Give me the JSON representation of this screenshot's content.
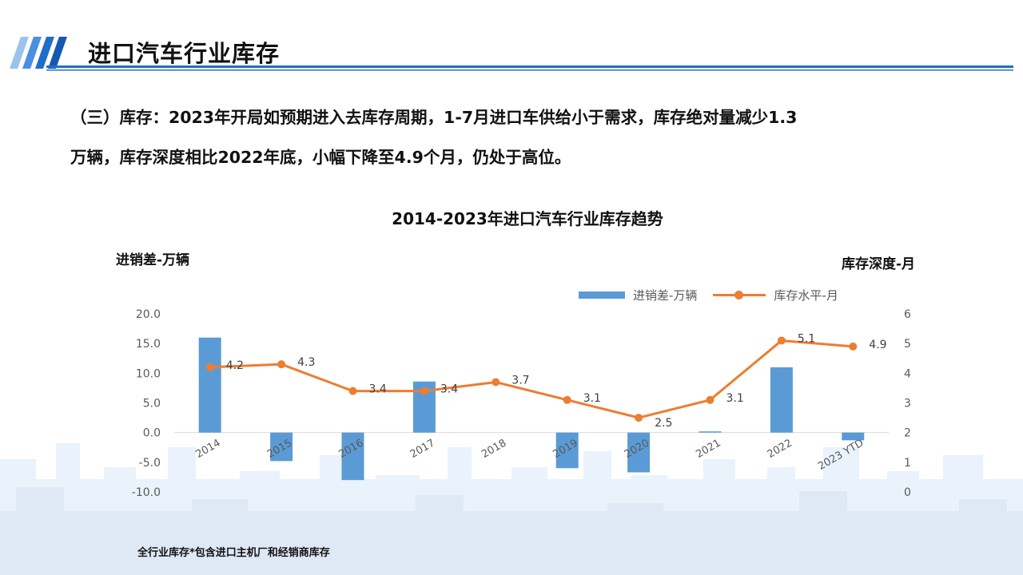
{
  "header": {
    "title": "进口汽车行业库存"
  },
  "body": {
    "line1": "（三）库存：2023年开局如预期进入去库存周期，1-7月进口车供给小于需求，库存绝对量减少1.3",
    "line2": "万辆，库存深度相比2022年底，小幅下降至4.9个月，仍处于高位。"
  },
  "colors": {
    "bar": "#5b9bd5",
    "line": "#ed7d31",
    "accent": "#1f6fc9",
    "skyline": "#e6effa"
  },
  "chart_data": {
    "type": "bar",
    "title": "2014-2023年进口汽车行业库存趋势",
    "categories": [
      "2014",
      "2015",
      "2016",
      "2017",
      "2018",
      "2019",
      "2020",
      "2021",
      "2022",
      "2023 YTD"
    ],
    "series": [
      {
        "name": "进销差-万辆",
        "type": "bar",
        "axis": "left",
        "values": [
          16.0,
          -4.8,
          -8.0,
          8.6,
          0.0,
          -6.0,
          -6.7,
          0.2,
          11.0,
          -1.3
        ]
      },
      {
        "name": "库存水平-月",
        "type": "line",
        "axis": "right",
        "values": [
          4.2,
          4.3,
          3.4,
          3.4,
          3.7,
          3.1,
          2.5,
          3.1,
          5.1,
          4.9
        ],
        "labels": [
          "4.2",
          "4.3",
          "3.4",
          "3.4",
          "3.7",
          "3.1",
          "2.5",
          "3.1",
          "5.1",
          "4.9"
        ]
      }
    ],
    "ylabel": "进销差-万辆",
    "ylabel_right": "库存深度-月",
    "ylim": [
      -10,
      20
    ],
    "ylim_right": [
      0,
      6
    ],
    "yticks": [
      "20.0",
      "15.0",
      "10.0",
      "5.0",
      "0.0",
      "-5.0",
      "-10.0"
    ],
    "yticks_right": [
      "6",
      "5",
      "4",
      "3",
      "2",
      "1",
      "0"
    ],
    "grid": false,
    "legend": "top-right"
  },
  "footnote": "全行业库存*包含进口主机厂和经销商库存"
}
